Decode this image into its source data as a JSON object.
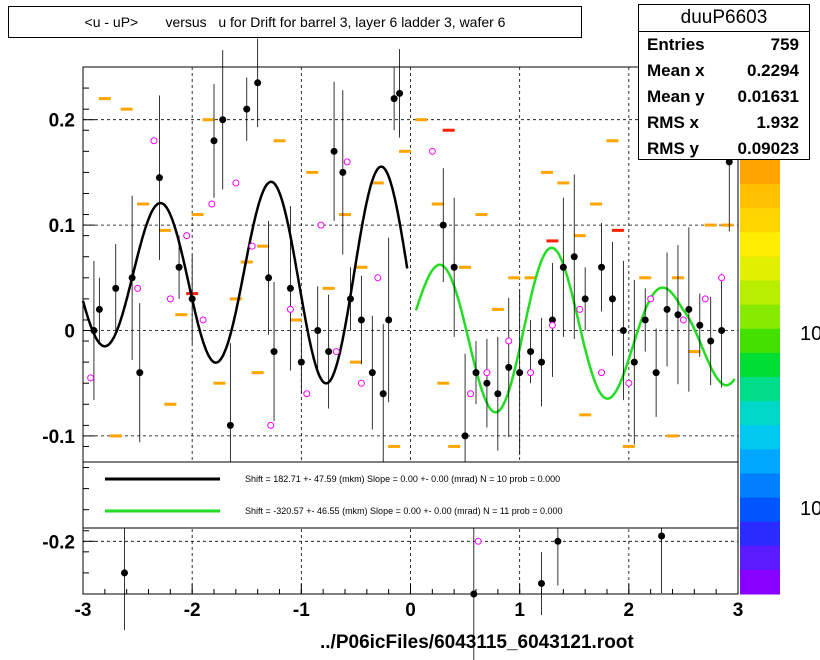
{
  "title": "<u - uP>       versus   u for Drift for barrel 3, layer 6 ladder 3, wafer 6",
  "footer": "../P06icFiles/6043115_6043121.root",
  "stats": {
    "name": "duuP6603",
    "rows": [
      {
        "label": "Entries",
        "value": "759"
      },
      {
        "label": "Mean x",
        "value": "0.2294"
      },
      {
        "label": "Mean y",
        "value": "0.01631"
      },
      {
        "label": "RMS x",
        "value": "1.932"
      },
      {
        "label": "RMS y",
        "value": "0.09023"
      }
    ]
  },
  "colors": {
    "fit_black": "#000000",
    "fit_green": "#22dd22",
    "orange_bins": "#ffa500",
    "red_bins": "#ff2200",
    "open_markers": "#ff00ff"
  },
  "chart_data": {
    "type": "scatter",
    "xlim": [
      -3,
      3
    ],
    "ylim": [
      -0.25,
      0.25
    ],
    "x_ticks": [
      "-3",
      "-2",
      "-1",
      "0",
      "1",
      "2",
      "3"
    ],
    "y_ticks": [
      "-0.2",
      "-0.1",
      "0",
      "0.1",
      "0.2"
    ],
    "z_ticks": [
      "10",
      "10"
    ],
    "grid": true,
    "legend": [
      {
        "text": "Shift =   182.71 +- 47.59 (mkm) Slope =     0.00 +- 0.00 (mrad)  N = 10 prob = 0.000",
        "color": "#000000"
      },
      {
        "text": "Shift =  -320.57 +- 46.55 (mkm) Slope =     0.00 +- 0.00 (mrad)  N = 11 prob = 0.000",
        "color": "#22dd22"
      }
    ],
    "black_points": [
      [
        -2.85,
        0.02
      ],
      [
        -2.7,
        0.04
      ],
      [
        -2.62,
        -0.23
      ],
      [
        -2.48,
        -0.04
      ],
      [
        -2.3,
        0.145
      ],
      [
        -2.12,
        0.06
      ],
      [
        -2.0,
        0.03
      ],
      [
        -1.8,
        0.18
      ],
      [
        -1.72,
        0.2
      ],
      [
        -1.65,
        -0.09
      ],
      [
        -1.5,
        0.21
      ],
      [
        -1.4,
        0.235
      ],
      [
        -1.3,
        0.05
      ],
      [
        -1.25,
        -0.02
      ],
      [
        -1.1,
        0.04
      ],
      [
        -1.0,
        -0.03
      ],
      [
        -0.85,
        0.0
      ],
      [
        -0.75,
        -0.02
      ],
      [
        -0.7,
        0.17
      ],
      [
        -0.62,
        0.15
      ],
      [
        -0.55,
        0.03
      ],
      [
        -0.45,
        0.01
      ],
      [
        -0.35,
        -0.04
      ],
      [
        -0.25,
        -0.06
      ],
      [
        -0.2,
        0.01
      ],
      [
        -0.15,
        0.22
      ],
      [
        -0.1,
        0.225
      ],
      [
        0.3,
        0.1
      ],
      [
        0.4,
        0.06
      ],
      [
        0.5,
        -0.1
      ],
      [
        0.6,
        -0.04
      ],
      [
        0.7,
        -0.05
      ],
      [
        0.8,
        -0.06
      ],
      [
        0.9,
        -0.035
      ],
      [
        1.0,
        -0.04
      ],
      [
        1.1,
        -0.02
      ],
      [
        1.2,
        -0.03
      ],
      [
        1.3,
        0.01
      ],
      [
        1.4,
        0.06
      ],
      [
        1.5,
        0.07
      ],
      [
        1.6,
        0.03
      ],
      [
        1.75,
        0.06
      ],
      [
        1.85,
        0.03
      ],
      [
        1.95,
        0.0
      ],
      [
        2.05,
        -0.03
      ],
      [
        2.15,
        0.01
      ],
      [
        2.25,
        -0.04
      ],
      [
        2.35,
        0.02
      ],
      [
        2.45,
        0.015
      ],
      [
        2.55,
        0.02
      ],
      [
        2.65,
        0.005
      ],
      [
        2.75,
        -0.01
      ],
      [
        2.85,
        0.0
      ],
      [
        2.92,
        0.16
      ],
      [
        0.58,
        -0.25
      ],
      [
        1.2,
        -0.24
      ],
      [
        1.35,
        -0.2
      ],
      [
        2.3,
        -0.195
      ],
      [
        -2.9,
        0.0
      ],
      [
        -2.55,
        0.05
      ]
    ],
    "open_points": [
      [
        -2.93,
        -0.045
      ],
      [
        -2.5,
        0.04
      ],
      [
        -2.35,
        0.18
      ],
      [
        -2.2,
        0.03
      ],
      [
        -2.05,
        0.09
      ],
      [
        -1.9,
        0.01
      ],
      [
        -1.82,
        0.12
      ],
      [
        -1.6,
        0.14
      ],
      [
        -1.45,
        0.08
      ],
      [
        -1.28,
        -0.09
      ],
      [
        -1.1,
        0.02
      ],
      [
        -0.95,
        -0.06
      ],
      [
        -0.82,
        0.1
      ],
      [
        -0.68,
        -0.02
      ],
      [
        -0.58,
        0.16
      ],
      [
        -0.45,
        -0.05
      ],
      [
        -0.3,
        0.05
      ],
      [
        0.2,
        0.17
      ],
      [
        0.55,
        -0.06
      ],
      [
        0.7,
        -0.04
      ],
      [
        0.9,
        -0.01
      ],
      [
        1.1,
        -0.04
      ],
      [
        1.3,
        0.005
      ],
      [
        1.55,
        0.02
      ],
      [
        1.75,
        -0.04
      ],
      [
        2.0,
        -0.05
      ],
      [
        2.2,
        0.03
      ],
      [
        2.5,
        0.01
      ],
      [
        2.7,
        0.03
      ],
      [
        2.85,
        0.05
      ],
      [
        2.97,
        0.17
      ],
      [
        0.62,
        -0.2
      ]
    ],
    "orange_bins": [
      [
        -2.8,
        0.22
      ],
      [
        -2.6,
        0.21
      ],
      [
        -2.45,
        0.12
      ],
      [
        -2.25,
        0.095
      ],
      [
        -2.1,
        0.015
      ],
      [
        -1.95,
        0.11
      ],
      [
        -1.85,
        0.2
      ],
      [
        -1.75,
        -0.05
      ],
      [
        -1.6,
        0.03
      ],
      [
        -1.5,
        0.065
      ],
      [
        -1.35,
        0.08
      ],
      [
        -1.2,
        0.18
      ],
      [
        -1.05,
        0.01
      ],
      [
        -0.9,
        0.15
      ],
      [
        -0.75,
        0.04
      ],
      [
        -0.6,
        0.11
      ],
      [
        -0.45,
        0.06
      ],
      [
        -0.3,
        0.14
      ],
      [
        -0.15,
        -0.11
      ],
      [
        -0.05,
        0.17
      ],
      [
        0.1,
        0.2
      ],
      [
        0.25,
        0.12
      ],
      [
        0.4,
        -0.11
      ],
      [
        0.5,
        0.06
      ],
      [
        0.65,
        0.11
      ],
      [
        0.8,
        0.02
      ],
      [
        0.95,
        0.05
      ],
      [
        1.1,
        0.05
      ],
      [
        1.25,
        0.15
      ],
      [
        1.4,
        0.14
      ],
      [
        1.55,
        0.09
      ],
      [
        1.7,
        0.12
      ],
      [
        1.85,
        0.18
      ],
      [
        2.0,
        -0.11
      ],
      [
        2.15,
        0.05
      ],
      [
        2.3,
        0.18
      ],
      [
        2.45,
        0.05
      ],
      [
        2.6,
        -0.02
      ],
      [
        2.75,
        0.1
      ],
      [
        2.9,
        0.1
      ],
      [
        -2.7,
        -0.1
      ],
      [
        -2.2,
        -0.07
      ],
      [
        -1.4,
        -0.04
      ],
      [
        -0.5,
        -0.03
      ],
      [
        0.3,
        -0.05
      ],
      [
        1.6,
        -0.08
      ],
      [
        2.4,
        -0.1
      ]
    ],
    "red_bins": [
      [
        -2.0,
        0.035
      ],
      [
        0.35,
        0.19
      ],
      [
        1.3,
        0.085
      ],
      [
        1.9,
        0.095
      ]
    ],
    "black_fit": {
      "x_range": [
        -3.0,
        -0.03
      ]
    },
    "green_fit": {
      "x_range": [
        0.05,
        2.97
      ]
    }
  }
}
